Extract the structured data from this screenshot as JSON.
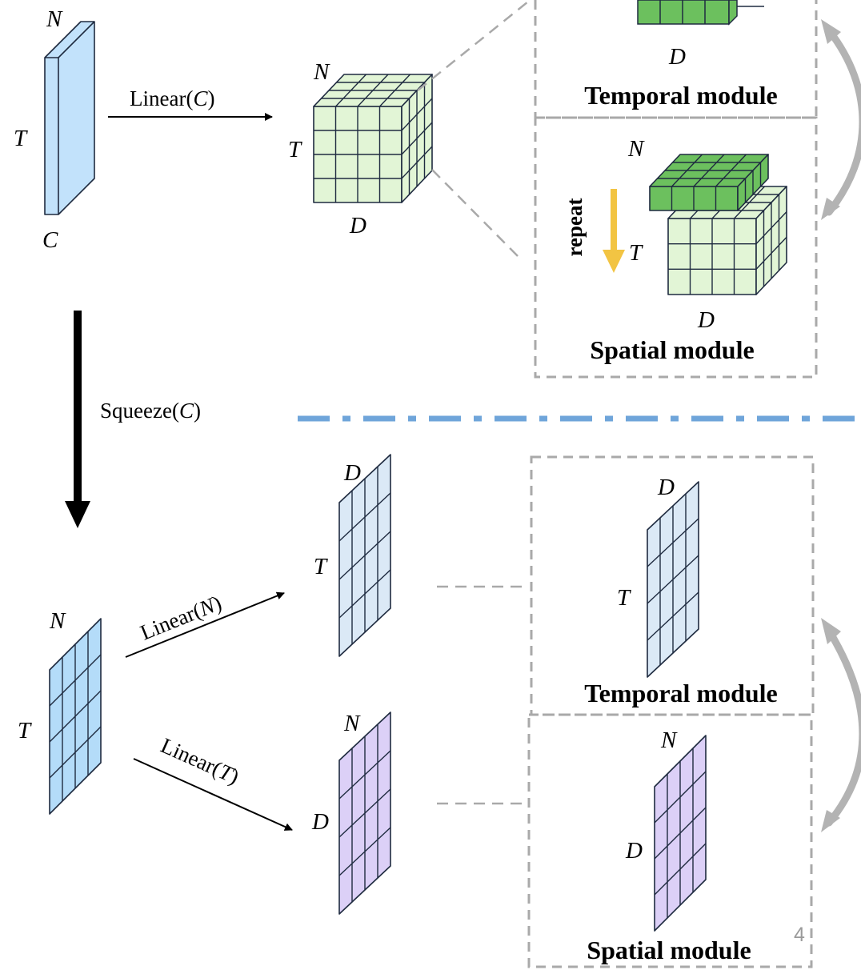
{
  "colors": {
    "input_blue": "#c2e2fb",
    "cube_green_light": "#e2f5d6",
    "cube_green_dark": "#6cc05e",
    "plane_blue": "#dbe9f6",
    "plane_purple": "#dcd0f7",
    "squeeze_blue": "#b4dcf9",
    "dash_gray": "#a9a9a9",
    "divider_blue": "#6fa5da",
    "repeat_arrow": "#f2c443",
    "cycle_arrow": "#b3b3b3"
  },
  "top": {
    "input": {
      "n": "N",
      "t": "T",
      "c": "C"
    },
    "op": {
      "name": "Linear",
      "arg": "C"
    },
    "cube": {
      "n": "N",
      "t": "T",
      "d": "D"
    },
    "temporal_panel": {
      "d": "D",
      "title": "Temporal module"
    },
    "spatial_panel": {
      "n": "N",
      "t": "T",
      "d": "D",
      "repeat": "repeat",
      "title": "Spatial module"
    }
  },
  "squeeze": {
    "name": "Squeeze",
    "arg": "C"
  },
  "bottom": {
    "input": {
      "n": "N",
      "t": "T"
    },
    "op_n": {
      "name": "Linear",
      "arg": "N"
    },
    "op_t": {
      "name": "Linear",
      "arg": "T"
    },
    "plane_blue": {
      "d": "D",
      "t": "T"
    },
    "plane_purple": {
      "n": "N",
      "d": "D"
    },
    "temporal_panel": {
      "d": "D",
      "t": "T",
      "title": "Temporal module"
    },
    "spatial_panel": {
      "n": "N",
      "d": "D",
      "title": "Spatial module"
    }
  },
  "page_number": "4"
}
